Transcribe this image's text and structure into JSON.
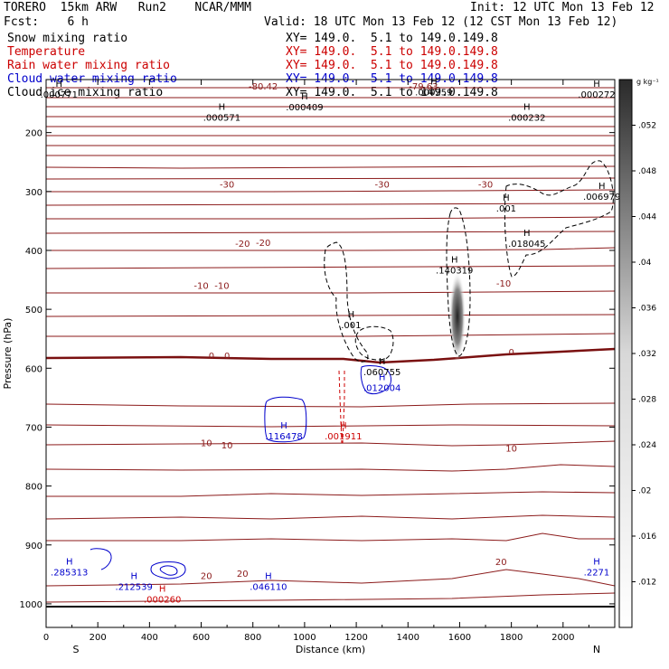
{
  "header": {
    "model": "TORERO  15km ARW   Run2    NCAR/MMM",
    "init": "Init: 12 UTC Mon 13 Feb 12",
    "fcst": "Fcst:    6 h",
    "valid": "Valid: 18 UTC Mon 13 Feb 12 (12 CST Mon 13 Feb 12)"
  },
  "fields": [
    {
      "name": "Snow mixing ratio",
      "xy": "",
      "color": "#000000"
    },
    {
      "name": "Temperature",
      "xy": "XY= 149.0.  5.1 to 149.0.149.8",
      "color": "#cc0000"
    },
    {
      "name": "Rain water mixing ratio",
      "xy": "XY= 149.0.  5.1 to 149.0.149.8",
      "color": "#cc0000"
    },
    {
      "name": "Cloud water mixing ratio",
      "xy": "XY= 149.0.  5.1 to 149.0.149.8",
      "color": "#0000cc"
    },
    {
      "name": "Cloud ice mixing ratio",
      "xy": "XY= 149.0.  5.1 to 149.0.149.8",
      "color": "#000000"
    }
  ],
  "snow_xy": "XY= 149.0.  5.1 to 149.0.149.8",
  "chart_data": {
    "type": "contour",
    "xlabel": "Distance (km)",
    "ylabel": "Pressure (hPa)",
    "xlim": [
      0,
      2200
    ],
    "ylim": [
      1040,
      110
    ],
    "xticks": [
      "0",
      "200",
      "400",
      "600",
      "800",
      "1000",
      "1200",
      "1400",
      "1600",
      "1800",
      "2000"
    ],
    "xtick_values": [
      0,
      200,
      400,
      600,
      800,
      1000,
      1200,
      1400,
      1600,
      1800,
      2000
    ],
    "yticks": [
      "200",
      "300",
      "400",
      "500",
      "600",
      "700",
      "800",
      "900",
      "1000"
    ],
    "ytick_values": [
      200,
      300,
      400,
      500,
      600,
      700,
      800,
      900,
      1000
    ],
    "endpoints": {
      "left": "S",
      "right": "N"
    },
    "colorbar": {
      "unit": "g kg⁻¹",
      "ticks": [
        ".052",
        ".048",
        ".044",
        ".04",
        ".036",
        ".032",
        ".028",
        ".024",
        ".02",
        ".016",
        ".012"
      ],
      "tick_values": [
        0.052,
        0.048,
        0.044,
        0.04,
        0.036,
        0.032,
        0.028,
        0.024,
        0.02,
        0.016,
        0.012
      ],
      "range": [
        0.008,
        0.056
      ]
    },
    "temperature_labels": [
      {
        "text": "-80.42",
        "x": 840,
        "p": 121
      },
      {
        "text": "-79.63",
        "x": 1460,
        "p": 121
      },
      {
        "text": "-30",
        "x": 700,
        "p": 287
      },
      {
        "text": "-30",
        "x": 1300,
        "p": 287
      },
      {
        "text": "-30",
        "x": 1700,
        "p": 287
      },
      {
        "text": "-20",
        "x": 760,
        "p": 388
      },
      {
        "text": "-20",
        "x": 840,
        "p": 386
      },
      {
        "text": "-10",
        "x": 600,
        "p": 459
      },
      {
        "text": "-10",
        "x": 680,
        "p": 459
      },
      {
        "text": "-10",
        "x": 1770,
        "p": 455
      },
      {
        "text": "0",
        "x": 640,
        "p": 578
      },
      {
        "text": "0",
        "x": 700,
        "p": 578
      },
      {
        "text": "0",
        "x": 1800,
        "p": 572
      },
      {
        "text": "10",
        "x": 620,
        "p": 726
      },
      {
        "text": "10",
        "x": 700,
        "p": 730
      },
      {
        "text": "10",
        "x": 1800,
        "p": 735
      },
      {
        "text": "20",
        "x": 620,
        "p": 952
      },
      {
        "text": "20",
        "x": 760,
        "p": 948
      },
      {
        "text": "20",
        "x": 1760,
        "p": 928
      }
    ],
    "maxima": [
      {
        "field": "cloud_ice",
        "value": ".000771",
        "x": 50,
        "p": 138
      },
      {
        "field": "cloud_ice",
        "value": ".000571",
        "x": 680,
        "p": 177
      },
      {
        "field": "cloud_ice",
        "value": ".000409",
        "x": 1000,
        "p": 159
      },
      {
        "field": "cloud_ice",
        "value": ".000259",
        "x": 1500,
        "p": 134
      },
      {
        "field": "cloud_ice",
        "value": ".000272",
        "x": 2130,
        "p": 138
      },
      {
        "field": "cloud_ice",
        "value": ".000232",
        "x": 1860,
        "p": 177
      },
      {
        "field": "snow",
        "value": ".006979",
        "x": 2150,
        "p": 311
      },
      {
        "field": "snow",
        "value": ".001",
        "x": 1780,
        "p": 331
      },
      {
        "field": "snow",
        "value": ".018045",
        "x": 1860,
        "p": 391
      },
      {
        "field": "snow",
        "value": ".140319",
        "x": 1580,
        "p": 436
      },
      {
        "field": "snow",
        "value": ".001",
        "x": 1180,
        "p": 529
      },
      {
        "field": "snow",
        "value": ".060755",
        "x": 1300,
        "p": 609
      },
      {
        "field": "cloud_water",
        "value": ".012004",
        "x": 1300,
        "p": 636
      },
      {
        "field": "cloud_water",
        "value": ".116478",
        "x": 920,
        "p": 718
      },
      {
        "field": "rain",
        "value": ".001911",
        "x": 1150,
        "p": 718
      },
      {
        "field": "cloud_water",
        "value": ".285313",
        "x": 90,
        "p": 949
      },
      {
        "field": "cloud_water",
        "value": ".212539",
        "x": 340,
        "p": 973
      },
      {
        "field": "rain",
        "value": ".000260",
        "x": 450,
        "p": 995
      },
      {
        "field": "cloud_water",
        "value": ".046110",
        "x": 860,
        "p": 973
      },
      {
        "field": "cloud_water",
        "value": ".2271",
        "x": 2130,
        "p": 949
      }
    ]
  }
}
